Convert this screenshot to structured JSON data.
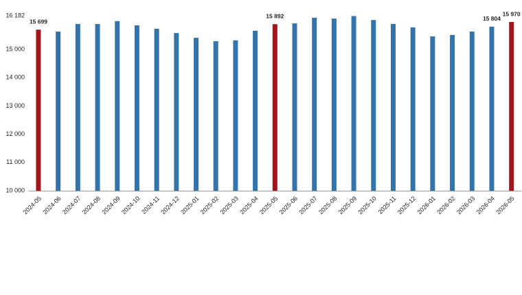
{
  "chart_data": {
    "type": "bar",
    "categories": [
      "2024-05",
      "2024-06",
      "2024-07",
      "2024-08",
      "2024-09",
      "2024-10",
      "2024-11",
      "2024-12",
      "2025-01",
      "2025-02",
      "2025-03",
      "2025-04",
      "2025-05",
      "2025-06",
      "2025-07",
      "2025-08",
      "2025-09",
      "2025-10",
      "2025-11",
      "2025-12",
      "2026-01",
      "2026-02",
      "2026-03",
      "2026-04",
      "2026-05"
    ],
    "values": [
      15699,
      15630,
      15900,
      15900,
      16000,
      15850,
      15730,
      15580,
      15410,
      15290,
      15320,
      15660,
      15892,
      15920,
      16120,
      16090,
      16180,
      16040,
      15900,
      15780,
      15460,
      15510,
      15630,
      15804,
      15970
    ],
    "value_labels": [
      "15 699",
      null,
      null,
      null,
      null,
      null,
      null,
      null,
      null,
      null,
      null,
      null,
      "15 892",
      null,
      null,
      null,
      null,
      null,
      null,
      null,
      null,
      null,
      null,
      "15 804",
      "15 970"
    ],
    "colors": [
      "#a3151d",
      "#3474ab",
      "#3474ab",
      "#3474ab",
      "#3474ab",
      "#3474ab",
      "#3474ab",
      "#3474ab",
      "#3474ab",
      "#3474ab",
      "#3474ab",
      "#3474ab",
      "#a3151d",
      "#3474ab",
      "#3474ab",
      "#3474ab",
      "#3474ab",
      "#3474ab",
      "#3474ab",
      "#3474ab",
      "#3474ab",
      "#3474ab",
      "#3474ab",
      "#3474ab",
      "#a3151d"
    ],
    "ylim": [
      10000,
      16182
    ],
    "yticks": [
      {
        "value": 10000,
        "label": "10 000"
      },
      {
        "value": 11000,
        "label": "11 000"
      },
      {
        "value": 12000,
        "label": "12 000"
      },
      {
        "value": 13000,
        "label": "13 000"
      },
      {
        "value": 14000,
        "label": "14 000"
      },
      {
        "value": 15000,
        "label": "15 000"
      },
      {
        "value": 16182,
        "label": "16 182"
      }
    ],
    "grid": false
  }
}
